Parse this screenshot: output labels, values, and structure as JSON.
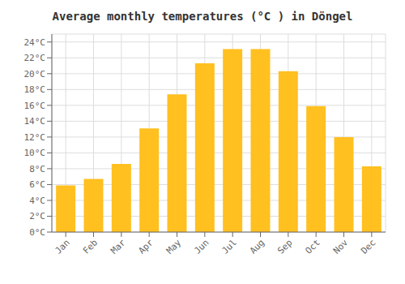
{
  "chart_data": {
    "type": "bar",
    "title": "Average monthly temperatures (°C ) in Döngel",
    "categories": [
      "Jan",
      "Feb",
      "Mar",
      "Apr",
      "May",
      "Jun",
      "Jul",
      "Aug",
      "Sep",
      "Oct",
      "Nov",
      "Dec"
    ],
    "values": [
      5.9,
      6.7,
      8.6,
      13.1,
      17.4,
      21.3,
      23.1,
      23.1,
      20.3,
      15.9,
      12.0,
      8.3
    ],
    "color": "#FFC020",
    "ylim": [
      0,
      25
    ],
    "yticks": [
      {
        "value": 0,
        "label": "0°C"
      },
      {
        "value": 2,
        "label": "2°C"
      },
      {
        "value": 4,
        "label": "4°C"
      },
      {
        "value": 6,
        "label": "6°C"
      },
      {
        "value": 8,
        "label": "8°C"
      },
      {
        "value": 10,
        "label": "10°C"
      },
      {
        "value": 12,
        "label": "12°C"
      },
      {
        "value": 14,
        "label": "14°C"
      },
      {
        "value": 16,
        "label": "16°C"
      },
      {
        "value": 18,
        "label": "18°C"
      },
      {
        "value": 20,
        "label": "20°C"
      },
      {
        "value": 22,
        "label": "22°C"
      },
      {
        "value": 24,
        "label": "24°C"
      }
    ],
    "grid": true
  }
}
